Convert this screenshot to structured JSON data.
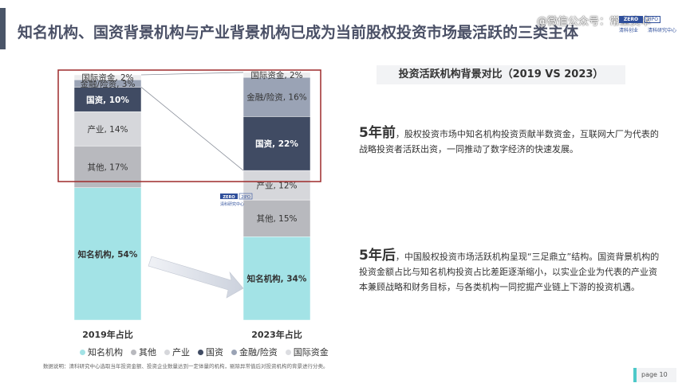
{
  "header": {
    "title": "知名机构、国资背景机构与产业背景机构已成为当前股权投资市场最活跃的三类主体",
    "watermark": "@微信公众号：常垒资本",
    "logo_lines": [
      "ZERO",
      "2IPO",
      "清科创业",
      "清科研究中心"
    ]
  },
  "chart_data": {
    "type": "bar",
    "stacked": true,
    "normalized": true,
    "categories": [
      "2019年占比",
      "2023年占比"
    ],
    "series": [
      {
        "name": "知名机构",
        "label": "知名机构",
        "values": [
          54,
          34
        ],
        "color": "#a3e3e6"
      },
      {
        "name": "其他",
        "label": "其他",
        "values": [
          17,
          15
        ],
        "color": "#b8b9be"
      },
      {
        "name": "产业",
        "label": "产业",
        "values": [
          14,
          12
        ],
        "color": "#d6d7db"
      },
      {
        "name": "国资",
        "label": "国资",
        "values": [
          10,
          22
        ],
        "color": "#404b63"
      },
      {
        "name": "金融/险资",
        "label": "金融/险资",
        "values": [
          3,
          16
        ],
        "color": "#9aa3b5"
      },
      {
        "name": "国际资金",
        "label": "国际资金",
        "values": [
          2,
          2
        ],
        "color": "#ececee"
      }
    ],
    "legend_position": "bottom",
    "xlabel": "",
    "ylabel": ""
  },
  "chart_logo": [
    "ZERO",
    "2IPO",
    "清科研究中心"
  ],
  "right": {
    "header": "投资活跃机构背景对比（2019 VS 2023）",
    "before": {
      "lead": "5年前",
      "text": "，股权投资市场中知名机构投资贡献半数资金，互联网大厂为代表的战略投资者活跃出资，一同推动了数字经济的快速发展。"
    },
    "after": {
      "lead": "5年后",
      "text": "，中国股权投资市场活跃机构呈现“三足鼎立”结构。国资背景机构的投资金额占比与知名机构投资占比差距逐渐缩小，以实业企业为代表的产业资本兼顾战略和财务目标，与各类机构一同挖掘产业链上下游的投资机遇。"
    }
  },
  "footnote": "数据说明：清科研究中心选取当年投资金额、投资企业数量达到一定体量的机构，剔除异常值后对投资机构的背景进行分类。",
  "page": {
    "label": "page",
    "number": "10"
  }
}
